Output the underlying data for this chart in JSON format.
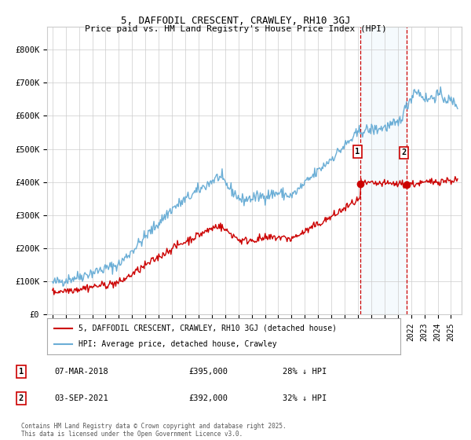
{
  "title": "5, DAFFODIL CRESCENT, CRAWLEY, RH10 3GJ",
  "subtitle": "Price paid vs. HM Land Registry's House Price Index (HPI)",
  "yticks": [
    0,
    100000,
    200000,
    300000,
    400000,
    500000,
    600000,
    700000,
    800000
  ],
  "ytick_labels": [
    "£0",
    "£100K",
    "£200K",
    "£300K",
    "£400K",
    "£500K",
    "£600K",
    "£700K",
    "£800K"
  ],
  "xlim_start": 1994.6,
  "xlim_end": 2025.8,
  "ylim": [
    0,
    870000
  ],
  "hpi_color": "#6baed6",
  "price_color": "#cc0000",
  "sale1_date": "07-MAR-2018",
  "sale1_price": 395000,
  "sale1_hpi_pct": "28% ↓ HPI",
  "sale2_date": "03-SEP-2021",
  "sale2_price": 392000,
  "sale2_hpi_pct": "32% ↓ HPI",
  "legend_label_price": "5, DAFFODIL CRESCENT, CRAWLEY, RH10 3GJ (detached house)",
  "legend_label_hpi": "HPI: Average price, detached house, Crawley",
  "footnote": "Contains HM Land Registry data © Crown copyright and database right 2025.\nThis data is licensed under the Open Government Licence v3.0.",
  "sale1_year": 2018.18,
  "sale2_year": 2021.67,
  "background_color": "#ffffff",
  "shaded_region_color": "#ddeeff"
}
